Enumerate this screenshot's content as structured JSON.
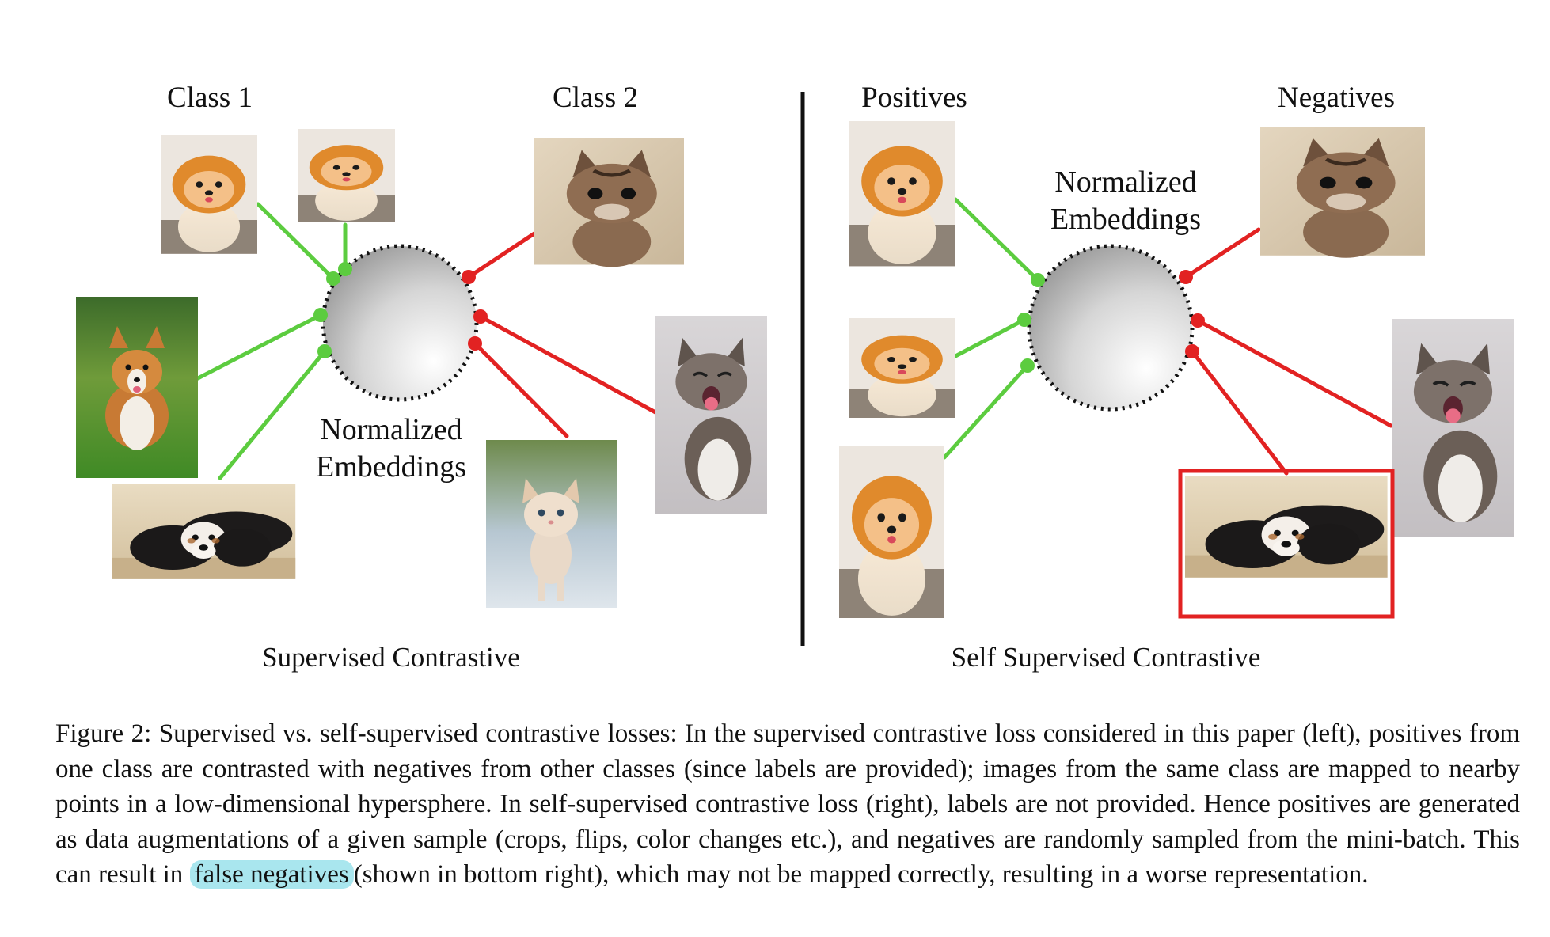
{
  "left_panel": {
    "class1_label": "Class 1",
    "class2_label": "Class 2",
    "embeddings_label_line1": "Normalized",
    "embeddings_label_line2": "Embeddings",
    "panel_title": "Supervised Contrastive"
  },
  "right_panel": {
    "positives_label": "Positives",
    "negatives_label": "Negatives",
    "embeddings_label_line1": "Normalized",
    "embeddings_label_line2": "Embeddings",
    "panel_title": "Self Supervised Contrastive"
  },
  "colors": {
    "positive_line": "#5ccc3f",
    "negative_line": "#e22222",
    "false_negative_box": "#e22222",
    "highlight": "#a9e6ee"
  },
  "caption": {
    "before_highlight": "Figure 2: Supervised vs. self-supervised contrastive losses: In the supervised contrastive loss considered in this paper (left), positives from one class are contrasted with negatives from other classes (since labels are provided); images from the same class are mapped to nearby points in a low-dimensional hypersphere. In self-supervised contrastive loss (right), labels are not provided. Hence positives are generated as data augmentations of a given sample (crops, flips, color changes etc.), and negatives are randomly sampled from the mini-batch. This can result in",
    "highlight": "false negatives",
    "after_highlight": "(shown in bottom right), which may not be mapped correctly, resulting in a worse representation."
  }
}
